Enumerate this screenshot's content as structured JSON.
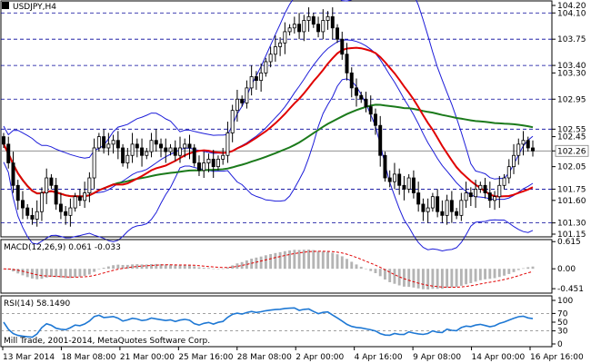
{
  "window": {
    "symbol_label": "USDJPY,H4"
  },
  "copyright": "Mill Trade, 2001-2014, MetaQuotes Software Corp.",
  "colors": {
    "background": "#ffffff",
    "frame": "#000000",
    "grid": "#000000",
    "candle": "#000000",
    "bollinger": "#1d1dd9",
    "ma_fast": "#e00000",
    "ma_slow": "#1b7a1b",
    "macd_hist": "#b4b4b4",
    "macd_signal": "#e00000",
    "rsi": "#1e78d4",
    "level_line": "#000099",
    "current_price_line": "#808080"
  },
  "chart_data": [
    {
      "type": "candlestick",
      "title": "USDJPY,H4",
      "ylim": [
        101.15,
        104.2
      ],
      "y_ticks": [
        "104.20",
        "104.10",
        "103.75",
        "103.40",
        "103.30",
        "102.95",
        "102.55",
        "102.45",
        "102.26",
        "102.05",
        "101.75",
        "101.60",
        "101.30",
        "101.15"
      ],
      "levels": [
        104.1,
        103.75,
        103.4,
        102.95,
        102.55,
        101.75,
        101.3
      ],
      "current_price": 102.26,
      "x_tick_labels": [
        "13 Mar 2014",
        "18 Mar 08:00",
        "21 Mar 00:00",
        "25 Mar 16:00",
        "28 Mar 08:00",
        "2 Apr 00:00",
        "4 Apr 16:00",
        "9 Apr 08:00",
        "14 Apr 00:00",
        "16 Apr 16:00"
      ],
      "close": [
        102.35,
        102.1,
        101.8,
        101.6,
        101.5,
        101.4,
        101.35,
        101.45,
        101.7,
        101.9,
        101.8,
        101.55,
        101.45,
        101.4,
        101.5,
        101.65,
        101.6,
        101.7,
        101.9,
        102.3,
        102.45,
        102.3,
        102.35,
        102.4,
        102.3,
        102.1,
        102.2,
        102.35,
        102.3,
        102.2,
        102.25,
        102.4,
        102.35,
        102.3,
        102.25,
        102.3,
        102.2,
        102.3,
        102.35,
        102.3,
        102.1,
        102.0,
        102.1,
        102.15,
        102.05,
        102.15,
        102.2,
        102.5,
        102.8,
        102.95,
        102.9,
        103.1,
        103.25,
        103.2,
        103.3,
        103.45,
        103.55,
        103.65,
        103.7,
        103.85,
        103.9,
        103.95,
        103.85,
        104.0,
        104.05,
        103.95,
        103.85,
        104.0,
        104.05,
        103.9,
        103.75,
        103.55,
        103.3,
        103.1,
        103.0,
        102.95,
        102.85,
        102.75,
        102.6,
        102.2,
        101.9,
        101.85,
        101.95,
        101.8,
        101.75,
        101.9,
        101.7,
        101.55,
        101.45,
        101.5,
        101.65,
        101.45,
        101.4,
        101.6,
        101.45,
        101.4,
        101.6,
        101.7,
        101.65,
        101.75,
        101.8,
        101.7,
        101.6,
        101.65,
        101.8,
        101.9,
        102.05,
        102.2,
        102.35,
        102.4,
        102.3,
        102.26
      ],
      "bollinger_bands": {
        "period": 20
      },
      "moving_averages": [
        {
          "period": 24
        },
        {
          "period": 60
        }
      ]
    },
    {
      "type": "bar",
      "title": "MACD(12,26,9) 0.061 -0.033",
      "ylim": [
        -0.51,
        0.62
      ],
      "y_ticks": [
        "0.615",
        "0.00",
        "-0.451"
      ],
      "series": [
        {
          "name": "MACD",
          "type": "histogram"
        },
        {
          "name": "Signal",
          "type": "line"
        }
      ],
      "latest": {
        "macd": 0.061,
        "signal": -0.033
      }
    },
    {
      "type": "line",
      "title": "RSI(14) 58.1490",
      "ylim": [
        0,
        100
      ],
      "y_ticks": [
        "100",
        "70",
        "50",
        "30",
        "0"
      ],
      "levels": [
        70,
        30
      ],
      "latest": 58.149
    }
  ]
}
